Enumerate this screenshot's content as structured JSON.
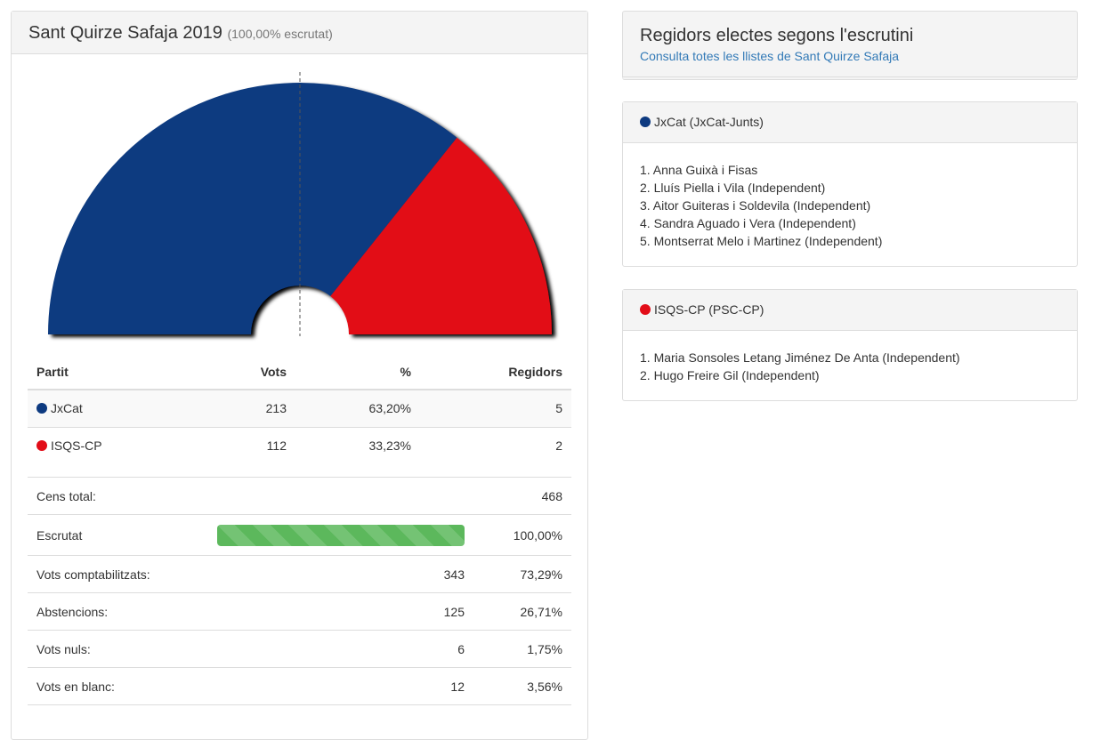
{
  "left": {
    "title": "Sant Quirze Safaja 2019",
    "subtitle": "(100,00% escrutat)",
    "headers": [
      "Partit",
      "Vots",
      "%",
      "Regidors"
    ],
    "parties": [
      {
        "name": "JxCat",
        "votes": "213",
        "pct": "63,20%",
        "seats": "5",
        "color": "#0d3a80"
      },
      {
        "name": "ISQS-CP",
        "votes": "112",
        "pct": "33,23%",
        "seats": "2",
        "color": "#e20d18"
      }
    ],
    "stats": [
      {
        "label": "Cens total:",
        "v1": "",
        "v2": "468"
      },
      {
        "label": "Escrutat",
        "progress": 100,
        "v2": "100,00%"
      },
      {
        "label": "Vots comptabilitzats:",
        "v1": "343",
        "v2": "73,29%"
      },
      {
        "label": "Abstencions:",
        "v1": "125",
        "v2": "26,71%"
      },
      {
        "label": "Vots nuls:",
        "v1": "6",
        "v2": "1,75%"
      },
      {
        "label": "Vots en blanc:",
        "v1": "12",
        "v2": "3,56%"
      }
    ]
  },
  "right": {
    "title": "Regidors electes segons l'escrutini",
    "link": "Consulta totes les llistes de Sant Quirze Safaja",
    "lists": [
      {
        "header": "JxCat (JxCat-Junts)",
        "color": "#0d3a80",
        "members": [
          "1. Anna Guixà i Fisas",
          "2. Lluís Piella i Vila (Independent)",
          "3. Aitor Guiteras i Soldevila (Independent)",
          "4. Sandra Aguado i Vera (Independent)",
          "5. Montserrat Melo i Martinez (Independent)"
        ]
      },
      {
        "header": "ISQS-CP (PSC-CP)",
        "color": "#e20d18",
        "members": [
          "1. Maria Sonsoles Letang Jiménez De Anta (Independent)",
          "2. Hugo Freire Gil (Independent)"
        ]
      }
    ]
  }
}
